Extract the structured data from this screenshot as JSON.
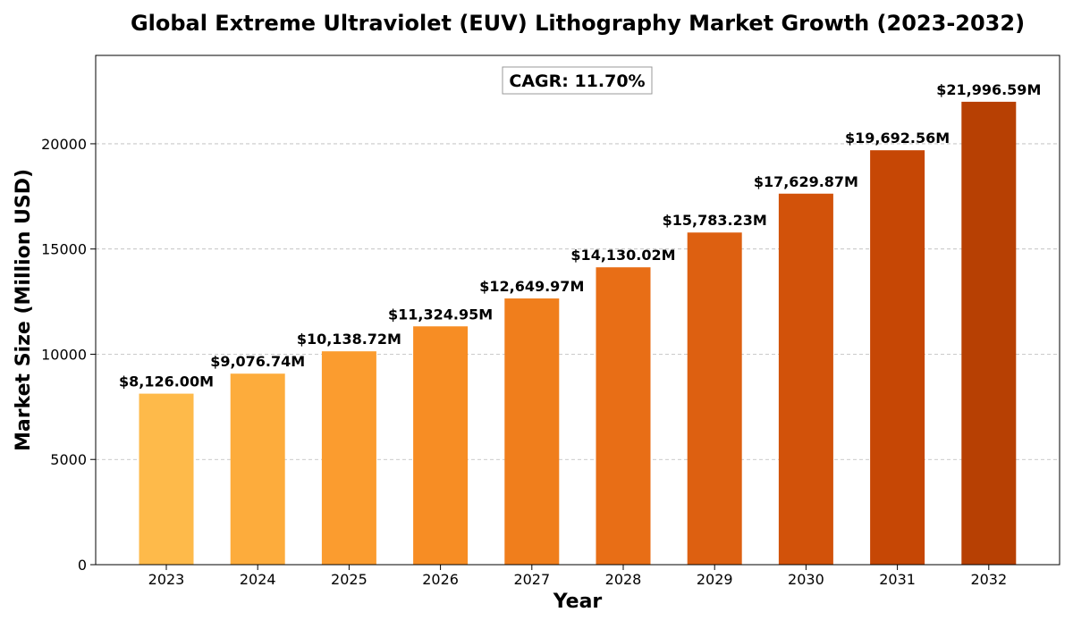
{
  "chart_data": {
    "type": "bar",
    "title": "Global Extreme Ultraviolet (EUV) Lithography Market Growth (2023-2032)",
    "xlabel": "Year",
    "ylabel": "Market Size (Million USD)",
    "categories": [
      "2023",
      "2024",
      "2025",
      "2026",
      "2027",
      "2028",
      "2029",
      "2030",
      "2031",
      "2032"
    ],
    "values": [
      8126.0,
      9076.74,
      10138.72,
      11324.95,
      12649.97,
      14130.02,
      15783.23,
      17629.87,
      19692.56,
      21996.59
    ],
    "data_labels": [
      "$8,126.00M",
      "$9,076.74M",
      "$10,138.72M",
      "$11,324.95M",
      "$12,649.97M",
      "$14,130.02M",
      "$15,783.23M",
      "$17,629.87M",
      "$19,692.56M",
      "$21,996.59M"
    ],
    "bar_colors": [
      "#feba4a",
      "#fdac3c",
      "#fb9c2f",
      "#f78d24",
      "#f07e1c",
      "#e86e16",
      "#dd6011",
      "#d2520a",
      "#c64705",
      "#b74003"
    ],
    "ylim": [
      0,
      24200
    ],
    "y_ticks": [
      0,
      5000,
      10000,
      15000,
      20000
    ],
    "y_tick_labels": [
      "0",
      "5000",
      "10000",
      "15000",
      "20000"
    ],
    "grid": true,
    "grid_axis": "y",
    "annotation": "CAGR: 11.70%",
    "annotation_position": "top-center"
  }
}
